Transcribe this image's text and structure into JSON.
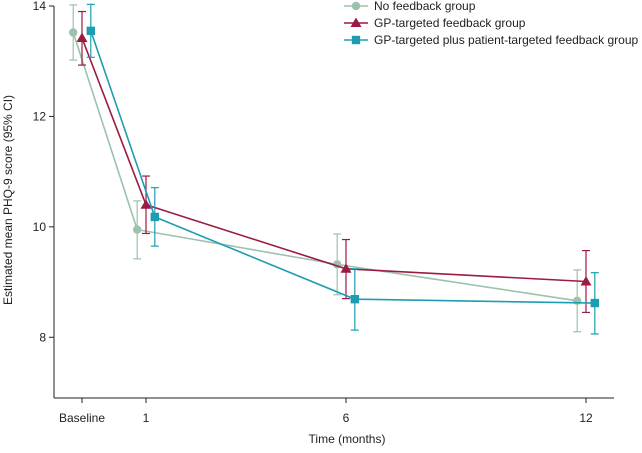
{
  "chart_data": {
    "type": "line",
    "xlabel": "Time (months)",
    "ylabel": "Estimated mean PHQ-9 score (95% CI)",
    "xlim": [
      -1.3,
      12.7
    ],
    "ylim": [
      6.9,
      14
    ],
    "x_ticks": [
      {
        "value": -0.6,
        "label": "Baseline"
      },
      {
        "value": 1,
        "label": "1"
      },
      {
        "value": 6,
        "label": "6"
      },
      {
        "value": 12,
        "label": "12"
      }
    ],
    "y_ticks": [
      8,
      10,
      12,
      14
    ],
    "legend_position": "top-right",
    "grid": false,
    "series": [
      {
        "name": "No feedback group",
        "color": "#9dc2ac",
        "marker": "circle",
        "x_offset": -0.22,
        "points": [
          {
            "x": -0.6,
            "y": 13.52,
            "lo": 13.02,
            "hi": 14.02
          },
          {
            "x": 1,
            "y": 9.95,
            "lo": 9.42,
            "hi": 10.47
          },
          {
            "x": 6,
            "y": 9.32,
            "lo": 8.77,
            "hi": 9.87
          },
          {
            "x": 12,
            "y": 8.66,
            "lo": 8.1,
            "hi": 9.22
          }
        ]
      },
      {
        "name": "GP-targeted feedback group",
        "color": "#9b1b42",
        "marker": "triangle",
        "x_offset": 0,
        "points": [
          {
            "x": -0.6,
            "y": 13.42,
            "lo": 12.93,
            "hi": 13.9
          },
          {
            "x": 1,
            "y": 10.4,
            "lo": 9.88,
            "hi": 10.92
          },
          {
            "x": 6,
            "y": 9.24,
            "lo": 8.7,
            "hi": 9.77
          },
          {
            "x": 12,
            "y": 9.01,
            "lo": 8.45,
            "hi": 9.57
          }
        ]
      },
      {
        "name": "GP-targeted plus patient-targeted feedback group",
        "color": "#1e9db2",
        "marker": "square",
        "x_offset": 0.22,
        "points": [
          {
            "x": -0.6,
            "y": 13.55,
            "lo": 13.07,
            "hi": 14.03
          },
          {
            "x": 1,
            "y": 10.18,
            "lo": 9.65,
            "hi": 10.71
          },
          {
            "x": 6,
            "y": 8.69,
            "lo": 8.13,
            "hi": 9.24
          },
          {
            "x": 12,
            "y": 8.62,
            "lo": 8.06,
            "hi": 9.17
          }
        ]
      }
    ]
  }
}
